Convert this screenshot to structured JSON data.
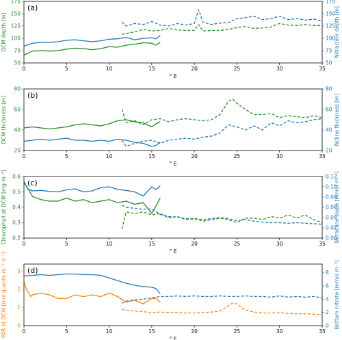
{
  "colors": {
    "green": "#228b22",
    "blue": "#1f77b4",
    "orange": "#ff7f0e",
    "axis": "#000000"
  },
  "chart_data": [
    {
      "type": "line",
      "tag": "(a)",
      "xlabel": "° E",
      "ylabel_left": "DCM depth [m]",
      "ylabel_right": "Nitracline depth [m]",
      "xlim": [
        0,
        35
      ],
      "ylim_left": [
        50,
        175
      ],
      "ylim_right": [
        50,
        175
      ],
      "xticks": [
        0,
        5,
        10,
        15,
        20,
        25,
        30,
        35
      ],
      "yticks_left": [
        50,
        75,
        100,
        125,
        150,
        175
      ],
      "yticks_right": [
        50,
        75,
        100,
        125,
        150,
        175
      ],
      "left_color": "green",
      "right_color": "blue",
      "series": [
        {
          "axis": "left",
          "color": "green",
          "style": "solid",
          "x": [
            0,
            0.5,
            1,
            2,
            3,
            4,
            5,
            6,
            7,
            8,
            9,
            10,
            11,
            12,
            13,
            14,
            15,
            15.5,
            16
          ],
          "y": [
            66,
            70,
            74,
            75,
            74,
            75,
            78,
            80,
            79,
            77,
            79,
            83,
            82,
            86,
            88,
            91,
            90,
            86,
            92
          ]
        },
        {
          "axis": "right",
          "color": "blue",
          "style": "solid",
          "x": [
            0,
            1,
            2,
            3,
            4,
            5,
            6,
            7,
            8,
            9,
            10,
            11,
            12,
            13,
            14,
            15,
            15.5,
            16
          ],
          "y": [
            84,
            90,
            92,
            92,
            93,
            96,
            97,
            95,
            93,
            95,
            98,
            99,
            102,
            97,
            100,
            101,
            99,
            106
          ]
        },
        {
          "axis": "left",
          "color": "green",
          "style": "dashed",
          "x": [
            11.5,
            12,
            13,
            14,
            15,
            16,
            17,
            18,
            19,
            20,
            20.5,
            21,
            22,
            23,
            24,
            25,
            26,
            27,
            28,
            29,
            30,
            31,
            32,
            33,
            34,
            35
          ],
          "y": [
            108,
            110,
            113,
            118,
            115,
            116,
            120,
            117,
            116,
            116,
            128,
            115,
            116,
            116,
            118,
            122,
            124,
            120,
            121,
            123,
            130,
            127,
            126,
            128,
            126,
            126
          ]
        },
        {
          "axis": "right",
          "color": "blue",
          "style": "dashed",
          "x": [
            11.5,
            12,
            13,
            14,
            15,
            16,
            17,
            18,
            19,
            20,
            20.5,
            21,
            22,
            23,
            24,
            25,
            26,
            27,
            28,
            29,
            30,
            31,
            32,
            33,
            34,
            35
          ],
          "y": [
            133,
            125,
            130,
            128,
            134,
            127,
            125,
            130,
            127,
            130,
            158,
            133,
            128,
            131,
            132,
            140,
            142,
            145,
            138,
            140,
            145,
            138,
            140,
            137,
            139,
            135
          ]
        }
      ]
    },
    {
      "type": "line",
      "tag": "(b)",
      "xlabel": "° E",
      "ylabel_left": "DCM thickness [m]",
      "ylabel_right": "Ncline thickness [m]",
      "xlim": [
        0,
        35
      ],
      "ylim_left": [
        20,
        80
      ],
      "ylim_right": [
        20,
        80
      ],
      "xticks": [
        0,
        5,
        10,
        15,
        20,
        25,
        30,
        35
      ],
      "yticks_left": [
        20,
        40,
        60,
        80
      ],
      "yticks_right": [
        20,
        40,
        60,
        80
      ],
      "left_color": "green",
      "right_color": "blue",
      "series": [
        {
          "axis": "left",
          "color": "green",
          "style": "solid",
          "x": [
            0,
            1,
            2,
            3,
            4,
            5,
            6,
            7,
            8,
            9,
            10,
            11,
            12,
            13,
            14,
            15,
            15.5,
            16
          ],
          "y": [
            42,
            43,
            42,
            41,
            42,
            43,
            45,
            46,
            45,
            44,
            46,
            49,
            50,
            48,
            47,
            43,
            46,
            48
          ]
        },
        {
          "axis": "right",
          "color": "blue",
          "style": "solid",
          "x": [
            0,
            1,
            2,
            3,
            4,
            5,
            6,
            7,
            8,
            9,
            10,
            11,
            12,
            13,
            14,
            15,
            15.5,
            16
          ],
          "y": [
            29,
            30,
            31,
            30,
            31,
            32,
            30,
            30,
            29,
            30,
            29,
            31,
            30,
            28,
            27,
            24,
            25,
            28
          ]
        },
        {
          "axis": "left",
          "color": "green",
          "style": "dashed",
          "x": [
            11.5,
            12,
            13,
            14,
            15,
            16,
            17,
            18,
            19,
            20,
            21,
            22,
            23,
            24,
            24.5,
            25,
            26,
            27,
            28,
            29,
            30,
            31,
            32,
            33,
            34,
            35
          ],
          "y": [
            60,
            47,
            49,
            45,
            50,
            51,
            48,
            50,
            51,
            50,
            49,
            50,
            55,
            68,
            70,
            66,
            60,
            55,
            55,
            56,
            52,
            54,
            53,
            52,
            54,
            52
          ]
        },
        {
          "axis": "right",
          "color": "blue",
          "style": "dashed",
          "x": [
            11.5,
            12,
            13,
            14,
            15,
            16,
            17,
            18,
            19,
            20,
            21,
            22,
            23,
            24,
            25,
            26,
            27,
            28,
            29,
            30,
            31,
            32,
            33,
            34,
            35
          ],
          "y": [
            30,
            24,
            27,
            29,
            30,
            27,
            30,
            31,
            32,
            31,
            33,
            34,
            37,
            45,
            43,
            40,
            44,
            40,
            47,
            44,
            49,
            47,
            48,
            50,
            51
          ]
        }
      ]
    },
    {
      "type": "line",
      "tag": "(c)",
      "xlabel": "° E",
      "ylabel_left": "Chlorophyll at DCM [mg m⁻³]",
      "ylabel_right": "Nitracline slope [mmol m⁻⁴]",
      "xlim": [
        0,
        35
      ],
      "ylim_left": [
        0.2,
        0.6
      ],
      "ylim_right": [
        0.0,
        0.12
      ],
      "xticks": [
        0,
        5,
        10,
        15,
        20,
        25,
        30,
        35
      ],
      "yticks_left": [
        0.2,
        0.3,
        0.4,
        0.5,
        0.6
      ],
      "yticks_right": [
        0.0,
        0.02,
        0.04,
        0.06,
        0.08,
        0.1,
        0.12
      ],
      "yticklabels_left": [
        "0.2",
        "0.3",
        "0.4",
        "0.5",
        "0.6"
      ],
      "yticklabels_right": [
        "0.00",
        "0.02",
        "0.04",
        "0.06",
        "0.08",
        "0.10",
        "0.12"
      ],
      "left_color": "green",
      "right_color": "blue",
      "series": [
        {
          "axis": "left",
          "color": "green",
          "style": "solid",
          "x": [
            0,
            0.5,
            1,
            2,
            3,
            4,
            5,
            6,
            7,
            8,
            9,
            10,
            11,
            12,
            13,
            14,
            15,
            15.5,
            16
          ],
          "y": [
            0.56,
            0.52,
            0.47,
            0.45,
            0.44,
            0.44,
            0.46,
            0.44,
            0.45,
            0.43,
            0.44,
            0.45,
            0.43,
            0.44,
            0.42,
            0.43,
            0.36,
            0.41,
            0.46
          ]
        },
        {
          "axis": "right",
          "color": "blue",
          "style": "solid",
          "x": [
            0,
            0.5,
            1,
            2,
            3,
            4,
            5,
            6,
            7,
            8,
            9,
            10,
            11,
            12,
            13,
            14,
            15,
            15.5,
            16
          ],
          "y": [
            0.11,
            0.095,
            0.092,
            0.093,
            0.091,
            0.09,
            0.094,
            0.096,
            0.09,
            0.092,
            0.098,
            0.1,
            0.095,
            0.093,
            0.09,
            0.082,
            0.1,
            0.094,
            0.102
          ]
        },
        {
          "axis": "left",
          "color": "green",
          "style": "dashed",
          "x": [
            11.5,
            12,
            13,
            14,
            15,
            16,
            17,
            18,
            19,
            20,
            21,
            22,
            23,
            24,
            25,
            26,
            27,
            28,
            29,
            30,
            31,
            32,
            33,
            34,
            35
          ],
          "y": [
            0.26,
            0.37,
            0.36,
            0.37,
            0.35,
            0.36,
            0.33,
            0.34,
            0.32,
            0.33,
            0.31,
            0.32,
            0.33,
            0.32,
            0.3,
            0.33,
            0.33,
            0.32,
            0.34,
            0.33,
            0.35,
            0.33,
            0.35,
            0.32,
            0.3
          ]
        },
        {
          "axis": "right",
          "color": "blue",
          "style": "dashed",
          "x": [
            11.5,
            12,
            13,
            14,
            15,
            16,
            17,
            18,
            19,
            20,
            21,
            22,
            23,
            24,
            25,
            26,
            27,
            28,
            29,
            30,
            31,
            32,
            33,
            34,
            35
          ],
          "y": [
            0.064,
            0.06,
            0.058,
            0.056,
            0.057,
            0.046,
            0.042,
            0.041,
            0.038,
            0.037,
            0.036,
            0.038,
            0.04,
            0.038,
            0.034,
            0.036,
            0.033,
            0.031,
            0.03,
            0.03,
            0.029,
            0.03,
            0.029,
            0.028,
            0.027
          ]
        }
      ]
    },
    {
      "type": "line",
      "tag": "(d)",
      "xlabel": "° E",
      "ylabel_left": "PAR at DCM [mol quanta m⁻² d⁻¹]",
      "ylabel_right": "Bottom nitrate [mmol m⁻³]",
      "xlim": [
        0,
        35
      ],
      "ylim_left": [
        0,
        3.4
      ],
      "ylim_right": [
        0,
        9.3
      ],
      "xticks": [
        0,
        5,
        10,
        15,
        20,
        25,
        30,
        35
      ],
      "yticks_left": [
        0,
        1,
        2,
        3
      ],
      "yticks_right": [
        0,
        2,
        4,
        6,
        8
      ],
      "left_color": "orange",
      "right_color": "blue",
      "series": [
        {
          "axis": "left",
          "color": "orange",
          "style": "solid",
          "x": [
            0,
            0.3,
            0.8,
            1,
            2,
            3,
            4,
            5,
            6,
            7,
            8,
            9,
            10,
            11,
            12,
            13,
            14,
            15,
            15.5,
            16
          ],
          "y": [
            2.4,
            2.0,
            1.6,
            1.7,
            1.8,
            1.7,
            1.5,
            1.5,
            1.7,
            1.6,
            1.7,
            1.6,
            1.8,
            1.6,
            1.3,
            1.4,
            1.2,
            1.5,
            1.5,
            1.3
          ]
        },
        {
          "axis": "right",
          "color": "blue",
          "style": "solid",
          "x": [
            0,
            1,
            2,
            3,
            4,
            5,
            6,
            7,
            8,
            9,
            10,
            11,
            12,
            13,
            14,
            15,
            15.5,
            16
          ],
          "y": [
            7.5,
            7.6,
            7.7,
            7.6,
            7.7,
            7.8,
            7.8,
            7.7,
            7.7,
            7.6,
            7.2,
            6.8,
            6.4,
            6.1,
            5.9,
            5.8,
            5.6,
            4.8
          ]
        },
        {
          "axis": "left",
          "color": "orange",
          "style": "dashed",
          "x": [
            11.5,
            12,
            13,
            14,
            15,
            16,
            17,
            18,
            19,
            20,
            21,
            22,
            23,
            24,
            24.5,
            25,
            26,
            27,
            28,
            29,
            30,
            31,
            32,
            33,
            34,
            35
          ],
          "y": [
            0.9,
            0.85,
            0.8,
            0.78,
            0.7,
            0.75,
            0.72,
            0.72,
            0.7,
            0.7,
            0.72,
            0.75,
            0.8,
            1.1,
            1.25,
            1.2,
            0.85,
            0.75,
            0.7,
            0.7,
            0.72,
            0.68,
            0.65,
            0.66,
            0.63,
            0.6
          ]
        },
        {
          "axis": "right",
          "color": "blue",
          "style": "dashed",
          "x": [
            11.5,
            12,
            13,
            14,
            15,
            16,
            17,
            18,
            19,
            20,
            21,
            22,
            23,
            24,
            25,
            26,
            27,
            28,
            29,
            30,
            31,
            32,
            33,
            34,
            35
          ],
          "y": [
            3.4,
            3.7,
            3.9,
            4.0,
            4.2,
            4.4,
            4.4,
            4.5,
            4.4,
            4.5,
            4.4,
            4.4,
            4.5,
            4.4,
            4.4,
            4.5,
            4.4,
            4.4,
            4.3,
            4.5,
            4.3,
            4.4,
            4.3,
            4.4,
            4.2
          ]
        }
      ]
    }
  ]
}
